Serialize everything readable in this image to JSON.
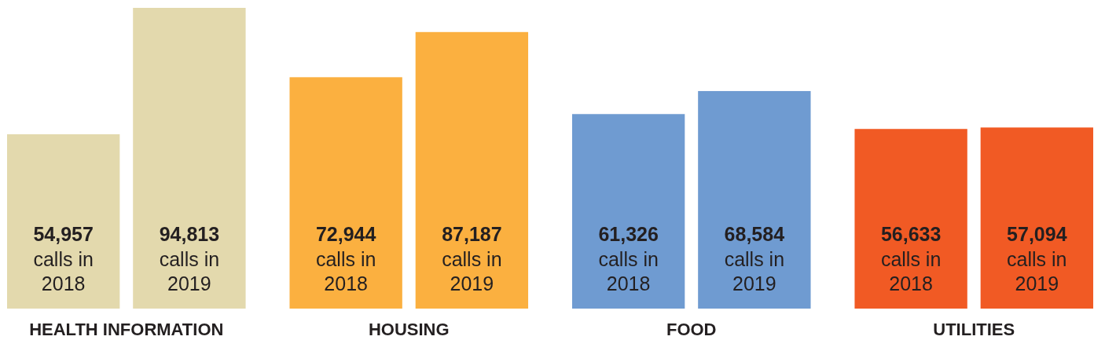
{
  "chart_data": {
    "type": "bar",
    "categories": [
      "HEALTH INFORMATION",
      "HOUSING",
      "FOOD",
      "UTILITIES"
    ],
    "series": [
      {
        "name": "calls in 2018",
        "colors": [
          "#e3d9ad",
          "#fbb040",
          "#6f9bd1",
          "#f15a24"
        ],
        "values": [
          54957,
          72944,
          61326,
          56633
        ],
        "value_labels": [
          "54,957",
          "72,944",
          "61,326",
          "56,633"
        ]
      },
      {
        "name": "calls in 2019",
        "colors": [
          "#e3d9ad",
          "#fbb040",
          "#6f9bd1",
          "#f15a24"
        ],
        "values": [
          94813,
          87187,
          68584,
          57094
        ],
        "value_labels": [
          "94,813",
          "87,187",
          "68,584",
          "57,094"
        ]
      }
    ]
  }
}
